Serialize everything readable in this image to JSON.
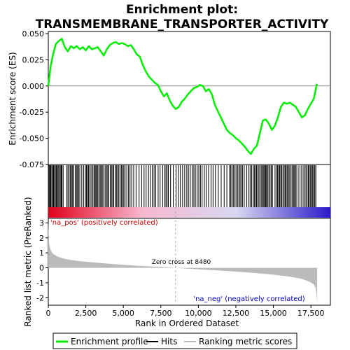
{
  "chart_data": {
    "type": "line",
    "title": "Enrichment plot:\nTRANSMEMBRANE_TRANSPORTER_ACTIVITY",
    "title_lines": [
      "Enrichment plot:",
      "TRANSMEMBRANE_TRANSPORTER_ACTIVITY"
    ],
    "top_panel": {
      "ylabel": "Enrichment score (ES)",
      "ylim": [
        -0.075,
        0.052
      ],
      "yticks": [
        0.05,
        0.025,
        0.0,
        -0.025,
        -0.05,
        -0.075
      ],
      "ytick_labels": [
        "0.050",
        "0.025",
        "0.000",
        "-0.025",
        "-0.050",
        "-0.075"
      ],
      "series": [
        {
          "name": "Enrichment profile",
          "color": "#00ee00",
          "x": [
            0,
            150,
            300,
            500,
            700,
            900,
            1100,
            1300,
            1500,
            1700,
            1900,
            2100,
            2300,
            2500,
            2700,
            2900,
            3100,
            3300,
            3500,
            3700,
            3900,
            4100,
            4300,
            4500,
            4700,
            4900,
            5100,
            5300,
            5500,
            5700,
            5900,
            6100,
            6300,
            6500,
            6700,
            6900,
            7100,
            7300,
            7500,
            7700,
            7900,
            8100,
            8300,
            8500,
            8700,
            8900,
            9100,
            9300,
            9500,
            9700,
            9900,
            10100,
            10300,
            10500,
            10700,
            10900,
            11100,
            11300,
            11500,
            11700,
            11900,
            12100,
            12300,
            12500,
            12700,
            12900,
            13100,
            13300,
            13500,
            13700,
            13900,
            14100,
            14300,
            14500,
            14700,
            14900,
            15100,
            15300,
            15500,
            15700,
            15900,
            16100,
            16300,
            16500,
            16700,
            16900,
            17100,
            17300,
            17500,
            17700,
            17900
          ],
          "y": [
            0.0,
            0.018,
            0.029,
            0.04,
            0.043,
            0.045,
            0.037,
            0.033,
            0.038,
            0.036,
            0.038,
            0.035,
            0.037,
            0.034,
            0.038,
            0.035,
            0.036,
            0.037,
            0.033,
            0.029,
            0.035,
            0.039,
            0.041,
            0.042,
            0.04,
            0.041,
            0.04,
            0.038,
            0.039,
            0.035,
            0.03,
            0.028,
            0.02,
            0.014,
            0.009,
            0.006,
            0.003,
            0.001,
            -0.005,
            -0.01,
            -0.007,
            -0.014,
            -0.019,
            -0.022,
            -0.02,
            -0.015,
            -0.012,
            -0.008,
            -0.005,
            -0.002,
            -0.001,
            0.001,
            0.0,
            -0.005,
            -0.003,
            -0.008,
            -0.018,
            -0.024,
            -0.03,
            -0.036,
            -0.042,
            -0.045,
            -0.047,
            -0.05,
            -0.052,
            -0.055,
            -0.058,
            -0.062,
            -0.065,
            -0.06,
            -0.057,
            -0.045,
            -0.033,
            -0.032,
            -0.036,
            -0.042,
            -0.038,
            -0.03,
            -0.02,
            -0.016,
            -0.017,
            -0.016,
            -0.018,
            -0.02,
            -0.025,
            -0.03,
            -0.028,
            -0.022,
            -0.017,
            -0.012,
            0.002
          ]
        }
      ]
    },
    "hits_panel": {
      "legend_name": "Hits",
      "hit_color": "#000000",
      "label_pos": "'na_pos' (positively correlated)",
      "label_pos_color": "#cc0000",
      "gradient_colors": [
        "#e0001a",
        "#f7b8cf",
        "#d8d8f2",
        "#2a1ac8"
      ],
      "hit_ranks": [
        10,
        60,
        110,
        160,
        230,
        290,
        350,
        420,
        470,
        540,
        600,
        660,
        720,
        800,
        860,
        910,
        990,
        1230,
        1310,
        1390,
        1470,
        1560,
        1620,
        1690,
        1800,
        1880,
        1950,
        2020,
        2100,
        2230,
        2350,
        2470,
        2540,
        2610,
        2680,
        2760,
        2850,
        2960,
        3040,
        3110,
        3170,
        3230,
        3300,
        3380,
        3460,
        3530,
        3600,
        3690,
        3790,
        3890,
        3960,
        4030,
        4130,
        4210,
        4290,
        4360,
        4460,
        4540,
        4620,
        4700,
        4790,
        4880,
        4960,
        5030,
        5120,
        5230,
        5350,
        5450,
        5560,
        5690,
        5850,
        6050,
        6220,
        6380,
        6520,
        6680,
        6800,
        6930,
        7050,
        7160,
        7320,
        7450,
        7620,
        7760,
        7840,
        7920,
        8000,
        8150,
        8330,
        8520,
        8680,
        8800,
        8950,
        9090,
        9230,
        9340,
        9460,
        9590,
        9700,
        9800,
        9920,
        10030,
        10140,
        10250,
        10400,
        10520,
        10680,
        10850,
        10980,
        11140,
        11330,
        11520,
        11720,
        11900,
        12080,
        12160,
        12240,
        12330,
        12420,
        12510,
        12610,
        12700,
        12780,
        12850,
        12950,
        13060,
        13220,
        13350,
        13450,
        13550,
        13650,
        13730,
        13800,
        13880,
        13960,
        14040,
        14130,
        14220,
        14290,
        14360,
        14420,
        14480,
        14540,
        14620,
        14700,
        14780,
        14860,
        14940,
        15110,
        15200,
        15280,
        15350,
        15420,
        15490,
        15560,
        15640,
        15720,
        15790,
        15860,
        15940,
        16010,
        16090,
        16180,
        16270,
        16340,
        16410,
        16480,
        16560,
        16700,
        16850,
        16980,
        17080,
        17170,
        17250,
        17330,
        17400,
        17480,
        17550,
        17620,
        17690,
        17760,
        17830
      ]
    },
    "bottom_panel": {
      "ylabel": "Ranked list metric (PreRanked)",
      "xlabel": "Rank in Ordered Dataset",
      "ylim": [
        -2.5,
        3.3
      ],
      "yticks": [
        3,
        2,
        1,
        0,
        -1,
        -2
      ],
      "ytick_labels": [
        "3",
        "2",
        "1",
        "0",
        "-1",
        "-2"
      ],
      "xlim": [
        0,
        18800
      ],
      "xticks": [
        0,
        2500,
        5000,
        7500,
        10000,
        12500,
        15000,
        17500
      ],
      "xtick_labels": [
        "0",
        "2,500",
        "5,000",
        "7,500",
        "10,000",
        "12,500",
        "15,000",
        "17,500"
      ],
      "zero_cross_label": "Zero cross at 8480",
      "zero_cross": 8480,
      "label_neg": "'na_neg' (negatively correlated)",
      "label_neg_color": "#0000cc",
      "fill_color": "#bbbbbb",
      "metric": {
        "rank": [
          0,
          50,
          150,
          300,
          600,
          1000,
          1500,
          2000,
          3000,
          4000,
          5000,
          6000,
          7000,
          8000,
          8480,
          9000,
          10000,
          11000,
          12000,
          13000,
          14000,
          15000,
          16000,
          16800,
          17200,
          17500,
          17700,
          17800,
          17870,
          17920
        ],
        "value": [
          3.1,
          1.6,
          1.2,
          0.95,
          0.75,
          0.62,
          0.52,
          0.45,
          0.36,
          0.28,
          0.2,
          0.13,
          0.08,
          0.03,
          0.0,
          -0.04,
          -0.1,
          -0.16,
          -0.22,
          -0.29,
          -0.37,
          -0.46,
          -0.58,
          -0.72,
          -0.85,
          -0.98,
          -1.12,
          -1.3,
          -1.7,
          -2.35
        ]
      }
    },
    "legend": {
      "placement": "bottom",
      "entries": [
        {
          "label": "Enrichment profile",
          "color": "#00ee00"
        },
        {
          "label": "Hits",
          "color": "#000000"
        },
        {
          "label": "Ranking metric scores",
          "color": "#bbbbbb"
        }
      ]
    }
  }
}
